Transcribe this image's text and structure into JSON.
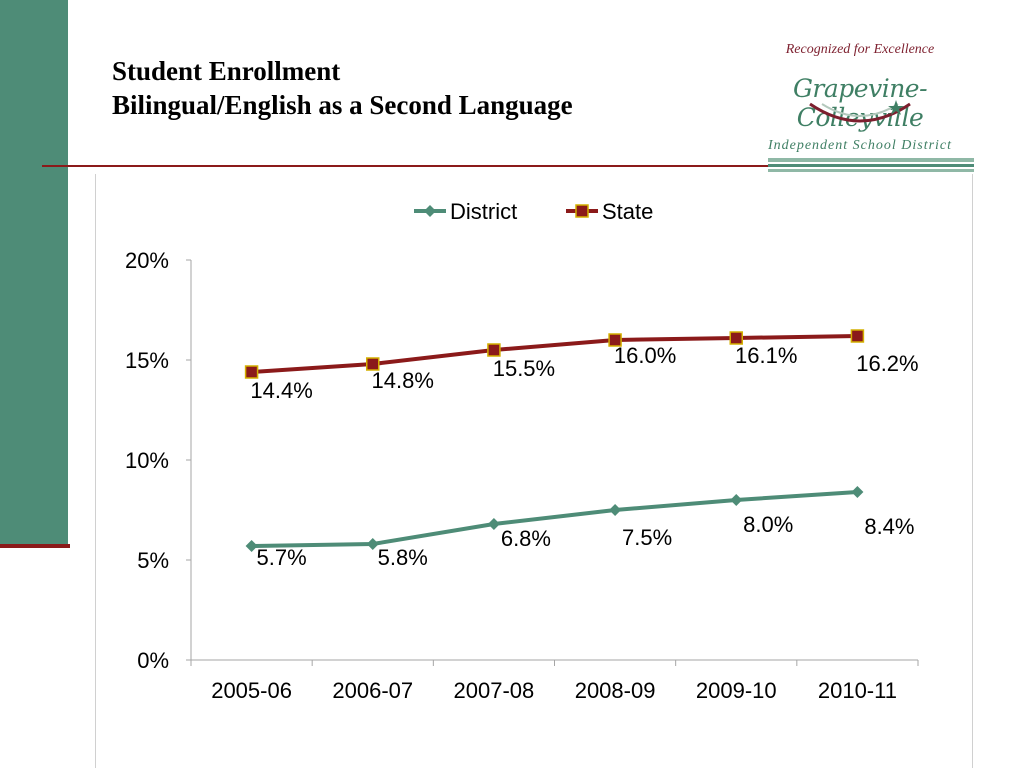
{
  "header": {
    "title_line1": "Student Enrollment",
    "title_line2": "Bilingual/English as a Second Language"
  },
  "logo": {
    "tagline": "Recognized for Excellence",
    "wordmark": "Grapevine-Colleyville",
    "subtitle": "Independent School District"
  },
  "colors": {
    "sidebar": "#4e8c77",
    "accent": "#8b1a1a",
    "district": "#4e8c77",
    "state": "#8b1a1a",
    "state_marker_fill": "#8b1a1a",
    "state_marker_edge": "#d4b000"
  },
  "chart_data": {
    "type": "line",
    "title": "",
    "xlabel": "",
    "ylabel": "",
    "categories": [
      "2005-06",
      "2006-07",
      "2007-08",
      "2008-09",
      "2009-10",
      "2010-11"
    ],
    "ylim": [
      0,
      20
    ],
    "yticks": [
      "0%",
      "5%",
      "10%",
      "15%",
      "20%"
    ],
    "grid": false,
    "legend_position": "top",
    "series": [
      {
        "name": "District",
        "marker": "diamond",
        "values": [
          5.7,
          5.8,
          6.8,
          7.5,
          8.0,
          8.4
        ],
        "labels": [
          "5.7%",
          "5.8%",
          "6.8%",
          "7.5%",
          "8.0%",
          "8.4%"
        ]
      },
      {
        "name": "State",
        "marker": "square",
        "values": [
          14.4,
          14.8,
          15.5,
          16.0,
          16.1,
          16.2
        ],
        "labels": [
          "14.4%",
          "14.8%",
          "15.5%",
          "16.0%",
          "16.1%",
          "16.2%"
        ]
      }
    ]
  }
}
